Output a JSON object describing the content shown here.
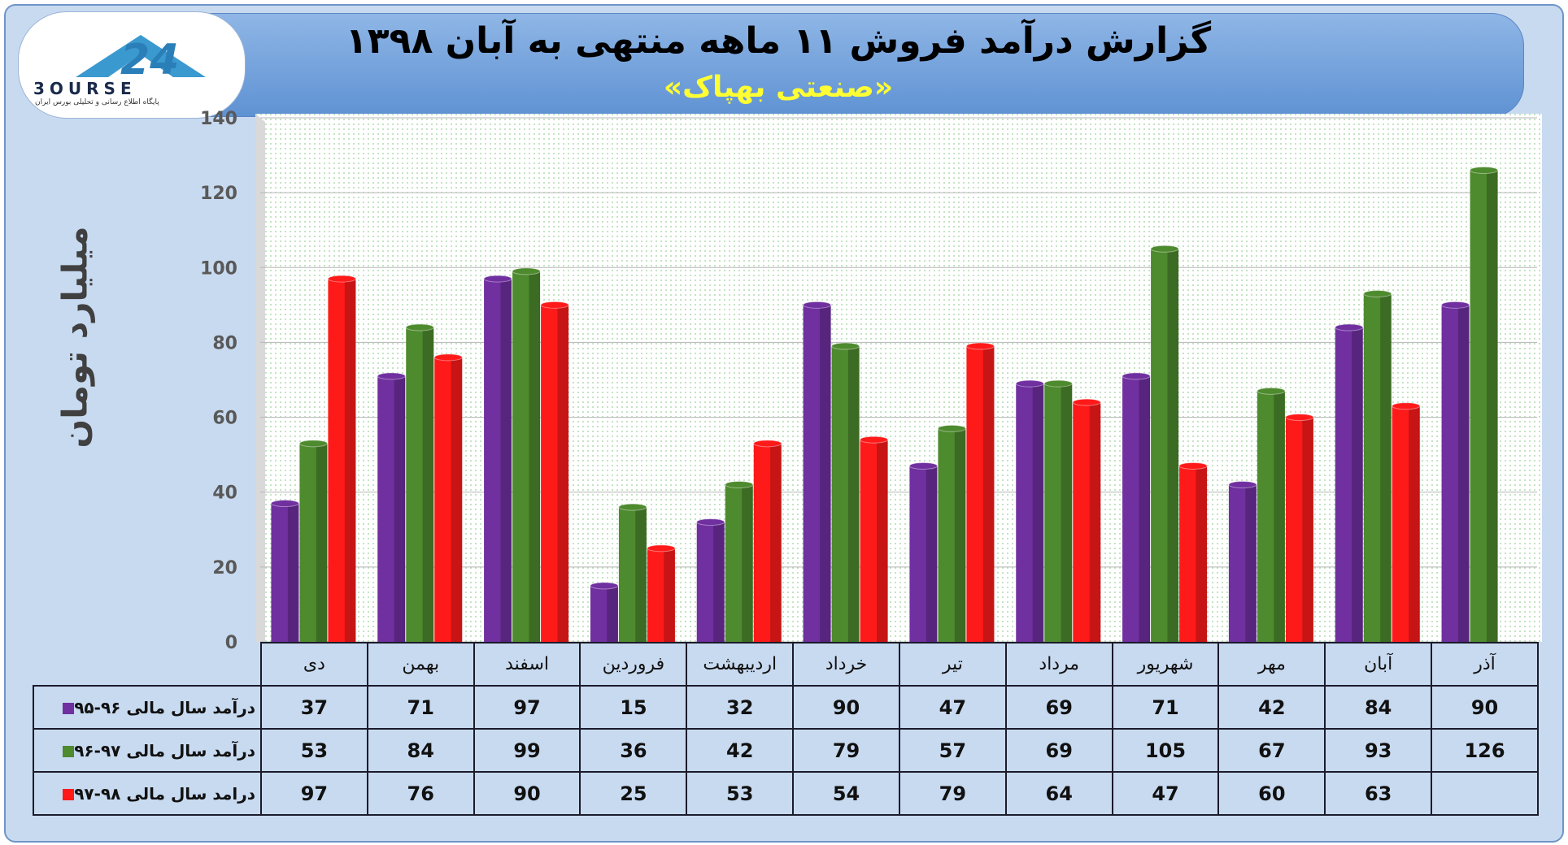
{
  "title": "گزارش درآمد فروش ۱۱ ماهه منتهی به آبان ۱۳۹۸",
  "subtitle": "«صنعتی بهپاک»",
  "logo": {
    "text": "3OURSE",
    "tagline": "پایگاه اطلاع رسانی و تحلیلی بورس ایران"
  },
  "chart_data": {
    "type": "bar",
    "ylabel": "میلیارد تومان",
    "ylim": [
      0,
      140
    ],
    "yticks": [
      0,
      20,
      40,
      60,
      80,
      100,
      120,
      140
    ],
    "grid": true,
    "categories": [
      "دی",
      "بهمن",
      "اسفند",
      "فروردین",
      "اردیبهشت",
      "خرداد",
      "تیر",
      "مرداد",
      "شهریور",
      "مهر",
      "آبان",
      "آذر"
    ],
    "series": [
      {
        "name": "درآمد سال مالی ۹۶-۹۵",
        "color": "#7030a0",
        "values": [
          37,
          71,
          97,
          15,
          32,
          90,
          47,
          69,
          71,
          42,
          84,
          90
        ]
      },
      {
        "name": "درآمد سال مالی ۹۷-۹۶",
        "color": "#4e8a2e",
        "values": [
          53,
          84,
          99,
          36,
          42,
          79,
          57,
          69,
          105,
          67,
          93,
          126
        ]
      },
      {
        "name": "درامد سال مالی ۹۸-۹۷",
        "color": "#ff1a1a",
        "values": [
          97,
          76,
          90,
          25,
          53,
          54,
          79,
          64,
          47,
          60,
          63,
          null
        ]
      }
    ]
  }
}
